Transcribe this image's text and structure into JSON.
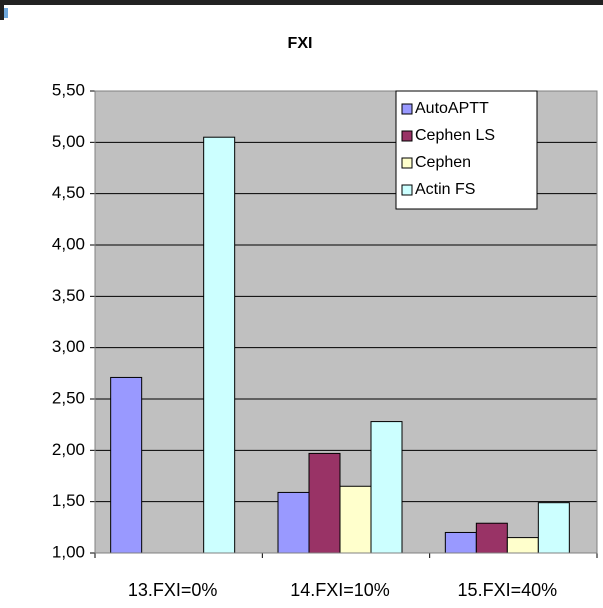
{
  "chart_data": {
    "type": "bar",
    "title": "FXI",
    "categories": [
      "13.FXI=0%",
      "14.FXI=10%",
      "15.FXI=40%"
    ],
    "series": [
      {
        "name": "AutoAPTT",
        "color": "#9999ff",
        "values": [
          2.71,
          1.59,
          1.2
        ]
      },
      {
        "name": "Cephen LS",
        "color": "#993366",
        "values": [
          null,
          1.97,
          1.29
        ]
      },
      {
        "name": "Cephen",
        "color": "#ffffcc",
        "values": [
          null,
          1.65,
          1.15
        ]
      },
      {
        "name": "Actin FS",
        "color": "#ccffff",
        "values": [
          5.05,
          2.28,
          1.49
        ]
      }
    ],
    "ylim": [
      1,
      5.5
    ],
    "yticks": [
      {
        "value": 1,
        "label": "1,00"
      },
      {
        "value": 1.5,
        "label": "1,50"
      },
      {
        "value": 2,
        "label": "2,00"
      },
      {
        "value": 2.5,
        "label": "2,50"
      },
      {
        "value": 3,
        "label": "3,00"
      },
      {
        "value": 3.5,
        "label": "3,50"
      },
      {
        "value": 4,
        "label": "4,00"
      },
      {
        "value": 4.5,
        "label": "4,50"
      },
      {
        "value": 5,
        "label": "5,00"
      },
      {
        "value": 5.5,
        "label": "5,50"
      }
    ],
    "grid": true,
    "legend": "top-right",
    "plot_background": "#c0c0c0"
  }
}
